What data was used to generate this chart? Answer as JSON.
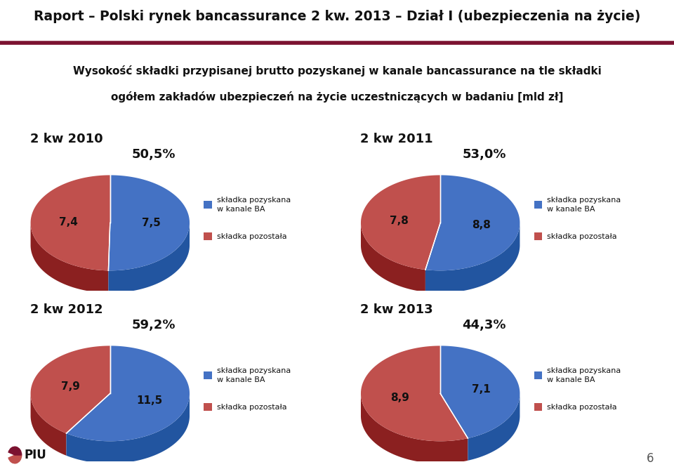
{
  "title_main": "Raport – Polski rynek bancassurance 2 kw. 2013 – Dział I",
  "title_sub": "(ubezpieczenia na życie)",
  "subtitle_line1": "Wysokość składki przypisanej brutto pozyskanej w kanale bancassurance na tle składki",
  "subtitle_line2": "ogółem zakładów ubezpieczeń na życie uczestniczących w badaniu [mld zł]",
  "charts": [
    {
      "title": "2 kw 2010",
      "values": [
        7.5,
        7.4
      ],
      "percentage": "50,5%",
      "labels": [
        "7,5",
        "7,4"
      ]
    },
    {
      "title": "2 kw 2011",
      "values": [
        8.8,
        7.8
      ],
      "percentage": "53,0%",
      "labels": [
        "8,8",
        "7,8"
      ]
    },
    {
      "title": "2 kw 2012",
      "values": [
        11.5,
        7.9
      ],
      "percentage": "59,2%",
      "labels": [
        "11,5",
        "7,9"
      ]
    },
    {
      "title": "2 kw 2013",
      "values": [
        7.1,
        8.9
      ],
      "percentage": "44,3%",
      "labels": [
        "7,1",
        "8,9"
      ]
    }
  ],
  "color_ba": "#4472C4",
  "color_ba_dark": "#2255A0",
  "color_pozostala": "#C0504D",
  "color_pozostala_dark": "#8B2020",
  "legend_ba": "składka pozyskana\nw kanale BA",
  "legend_pozostala": "składka pozostała",
  "bg_color": "#FFFFFF",
  "title_color": "#1F1F1F",
  "header_line_color": "#7B1230",
  "page_number": "6"
}
